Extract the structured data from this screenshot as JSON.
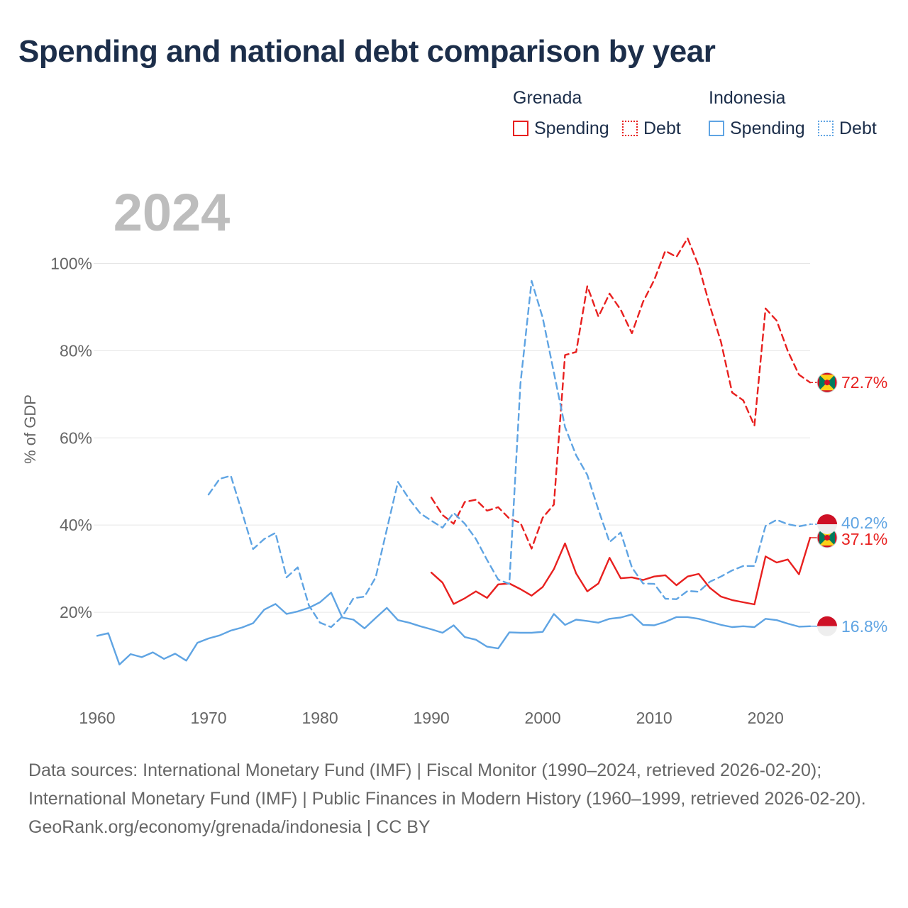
{
  "title": "Spending and national debt comparison by year",
  "legend": {
    "groups": [
      {
        "country": "Grenada",
        "color": "#e8201f",
        "spending_label": "Spending",
        "debt_label": "Debt"
      },
      {
        "country": "Indonesia",
        "color": "#5fa4e3",
        "spending_label": "Spending",
        "debt_label": "Debt"
      }
    ]
  },
  "footer": {
    "sources": "Data sources: International Monetary Fund (IMF) | Fiscal Monitor (1990–2024, retrieved 2026-02-20); International Monetary Fund (IMF) | Public Finances in Modern History (1960–1999, retrieved 2026-02-20).",
    "credit": "GeoRank.org/economy/grenada/indonesia | CC BY"
  },
  "chart_data": {
    "type": "line",
    "title": "Spending and national debt comparison by year",
    "year_label": "2024",
    "ylabel": "% of GDP",
    "xlabel": "",
    "xlim": [
      1960,
      2024
    ],
    "ylim": [
      0,
      110
    ],
    "x_ticks": [
      "1960",
      "1970",
      "1980",
      "1990",
      "2000",
      "2010",
      "2020"
    ],
    "y_ticks": [
      "20%",
      "40%",
      "60%",
      "80%",
      "100%"
    ],
    "grid": true,
    "end_labels": {
      "grenada_debt": "72.7%",
      "indonesia_debt": "40.2%",
      "grenada_spending": "37.1%",
      "indonesia_spending": "16.8%"
    },
    "series": [
      {
        "name": "Grenada Spending",
        "country": "Grenada",
        "kind": "spending",
        "color": "#e8201f",
        "dash": false,
        "start_year": 1990,
        "values": [
          29.1,
          26.8,
          21.9,
          23.2,
          24.8,
          23.3,
          26.4,
          26.6,
          25.3,
          23.8,
          25.8,
          29.9,
          35.8,
          28.9,
          24.8,
          26.6,
          32.5,
          27.8,
          28.0,
          27.4,
          28.2,
          28.5,
          26.2,
          28.2,
          28.8,
          25.6,
          23.6,
          22.8,
          22.3,
          21.8,
          32.8,
          31.4,
          32.1,
          28.7,
          37.1
        ]
      },
      {
        "name": "Grenada Debt",
        "country": "Grenada",
        "kind": "debt",
        "color": "#e8201f",
        "dash": true,
        "start_year": 1990,
        "values": [
          46.3,
          42.3,
          40.3,
          45.3,
          45.8,
          43.3,
          44.1,
          41.5,
          40.5,
          34.6,
          41.7,
          44.7,
          79.0,
          79.7,
          94.8,
          87.8,
          93.1,
          89.4,
          84.0,
          91.2,
          96.2,
          102.9,
          101.5,
          105.8,
          99.4,
          90.3,
          82.0,
          70.4,
          68.6,
          62.8,
          89.7,
          86.9,
          79.9,
          74.5,
          72.7
        ]
      },
      {
        "name": "Indonesia Spending",
        "country": "Indonesia",
        "kind": "spending",
        "color": "#5fa4e3",
        "dash": false,
        "start_year": 1960,
        "values": [
          14.6,
          15.2,
          8.0,
          10.4,
          9.7,
          10.8,
          9.3,
          10.5,
          8.9,
          13.0,
          14.0,
          14.7,
          15.8,
          16.5,
          17.5,
          20.6,
          21.9,
          19.6,
          20.2,
          21.0,
          22.3,
          24.5,
          18.8,
          18.3,
          16.3,
          18.7,
          21.0,
          18.2,
          17.6,
          16.8,
          16.1,
          15.3,
          17.0,
          14.3,
          13.7,
          12.1,
          11.7,
          15.4,
          15.3,
          15.3,
          15.5,
          19.6,
          17.1,
          18.3,
          18.0,
          17.6,
          18.5,
          18.8,
          19.5,
          17.1,
          17.0,
          17.8,
          18.9,
          18.9,
          18.5,
          17.8,
          17.1,
          16.6,
          16.8,
          16.6,
          18.5,
          18.2,
          17.4,
          16.7,
          16.8
        ]
      },
      {
        "name": "Indonesia Debt",
        "country": "Indonesia",
        "kind": "debt",
        "color": "#5fa4e3",
        "dash": true,
        "start_year": 1970,
        "values": [
          47.0,
          50.6,
          51.3,
          43.0,
          34.5,
          36.8,
          38.2,
          28.0,
          30.3,
          21.6,
          17.6,
          16.6,
          19.0,
          23.2,
          23.6,
          28.0,
          39.0,
          49.9,
          46.0,
          42.7,
          41.0,
          39.4,
          42.8,
          40.3,
          36.8,
          32.0,
          27.5,
          26.5,
          72.5,
          96.0,
          87.5,
          75.0,
          62.5,
          56.0,
          51.5,
          43.5,
          36.1,
          38.3,
          30.3,
          26.6,
          26.5,
          23.1,
          23.0,
          24.9,
          24.7,
          27.0,
          28.2,
          29.6,
          30.6,
          30.6,
          39.8,
          41.2,
          40.2,
          39.7,
          40.2
        ]
      }
    ]
  }
}
